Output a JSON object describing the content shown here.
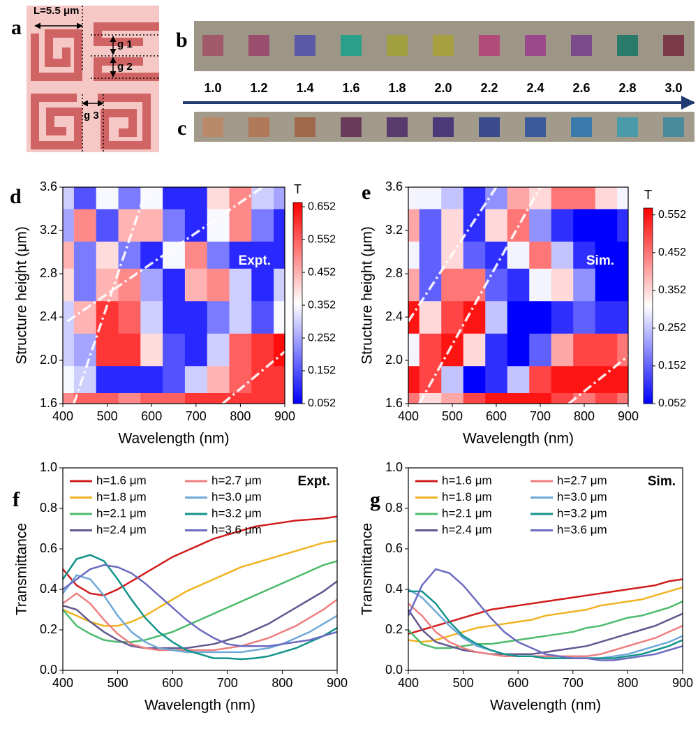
{
  "panel_a": {
    "label": "a",
    "length_label": "L=5.5 μm",
    "gap_labels": [
      "g 1",
      "g 2",
      "g 3"
    ]
  },
  "panel_b": {
    "label": "b",
    "square_colors": [
      "#a05a6a",
      "#9a4e6e",
      "#5a5aa8",
      "#2aa08a",
      "#a0a040",
      "#a8a040",
      "#b04a78",
      "#9a4a8a",
      "#7a4a8a",
      "#2a7a6a",
      "#7a3a4a"
    ]
  },
  "panel_c": {
    "label": "c",
    "square_colors": [
      "#b88a6a",
      "#b07a5a",
      "#a0684a",
      "#6a3a5a",
      "#5a3a6a",
      "#4a3a7a",
      "#3a4a8a",
      "#3a5a9a",
      "#3a7aaa",
      "#4a9aaa",
      "#4a8a9a"
    ]
  },
  "height_labels": [
    "1.0",
    "1.2",
    "1.4",
    "1.6",
    "1.8",
    "2.0",
    "2.2",
    "2.4",
    "2.6",
    "2.8",
    "3.0"
  ],
  "chart_data": [
    {
      "type": "heatmap",
      "panel": "d",
      "annotation": "Expt.",
      "xlabel": "Wavelength (nm)",
      "ylabel": "Structure height (μm)",
      "colorbar_label": "T",
      "x": [
        400,
        450,
        500,
        550,
        600,
        650,
        700,
        750,
        800,
        850,
        900
      ],
      "y_edges": [
        1.6,
        1.7,
        1.95,
        2.25,
        2.55,
        2.85,
        3.1,
        3.4,
        3.6
      ],
      "values": [
        [
          0.5,
          0.55,
          0.55,
          0.5,
          0.55,
          0.55,
          0.6,
          0.6,
          0.6,
          0.6,
          0.6
        ],
        [
          0.35,
          0.3,
          0.1,
          0.1,
          0.1,
          0.15,
          0.3,
          0.45,
          0.55,
          0.6,
          0.6
        ],
        [
          0.3,
          0.25,
          0.6,
          0.6,
          0.4,
          0.15,
          0.1,
          0.3,
          0.55,
          0.6,
          0.65
        ],
        [
          0.3,
          0.45,
          0.6,
          0.55,
          0.3,
          0.1,
          0.1,
          0.2,
          0.3,
          0.15,
          0.35
        ],
        [
          0.4,
          0.2,
          0.45,
          0.5,
          0.25,
          0.1,
          0.45,
          0.5,
          0.3,
          0.1,
          0.3
        ],
        [
          0.45,
          0.2,
          0.4,
          0.2,
          0.1,
          0.35,
          0.5,
          0.2,
          0.1,
          0.1,
          0.1
        ],
        [
          0.25,
          0.5,
          0.15,
          0.45,
          0.45,
          0.2,
          0.1,
          0.35,
          0.5,
          0.2,
          0.1
        ],
        [
          0.3,
          0.15,
          0.35,
          0.2,
          0.35,
          0.1,
          0.1,
          0.4,
          0.5,
          0.3,
          0.25
        ]
      ],
      "xlim": [
        400,
        900
      ],
      "ylim": [
        1.6,
        3.6
      ],
      "xticks": [
        400,
        500,
        600,
        700,
        800,
        900
      ],
      "yticks": [
        1.6,
        {
          "value": 2,
          "label": "2.0"
        },
        2.4,
        2.8,
        3.2,
        3.6
      ],
      "clim": [
        0.052,
        0.665
      ],
      "cticks": [
        0.052,
        0.152,
        0.252,
        0.352,
        0.452,
        0.552,
        0.652
      ],
      "colormap": [
        "#0000ff",
        "#ffffff",
        "#ff0000"
      ]
    },
    {
      "type": "heatmap",
      "panel": "e",
      "annotation": "Sim.",
      "xlabel": "Wavelength (nm)",
      "ylabel": "Structure height (μm)",
      "colorbar_label": "T",
      "x": [
        400,
        450,
        500,
        550,
        600,
        650,
        700,
        750,
        800,
        850,
        900
      ],
      "y_edges": [
        1.6,
        1.7,
        1.95,
        2.25,
        2.55,
        2.85,
        3.1,
        3.4,
        3.6
      ],
      "values": [
        [
          0.45,
          0.35,
          0.4,
          0.5,
          0.55,
          0.55,
          0.55,
          0.5,
          0.45,
          0.5,
          0.45
        ],
        [
          0.55,
          0.5,
          0.25,
          0.05,
          0.1,
          0.25,
          0.5,
          0.55,
          0.55,
          0.55,
          0.55
        ],
        [
          0.3,
          0.5,
          0.55,
          0.35,
          0.1,
          0.05,
          0.15,
          0.4,
          0.5,
          0.5,
          0.45
        ],
        [
          0.55,
          0.35,
          0.5,
          0.55,
          0.25,
          0.05,
          0.05,
          0.1,
          0.15,
          0.1,
          0.1
        ],
        [
          0.4,
          0.15,
          0.45,
          0.45,
          0.15,
          0.1,
          0.3,
          0.35,
          0.2,
          0.05,
          0.05
        ],
        [
          0.3,
          0.15,
          0.35,
          0.15,
          0.1,
          0.3,
          0.45,
          0.25,
          0.1,
          0.05,
          0.05
        ],
        [
          0.4,
          0.15,
          0.35,
          0.1,
          0.35,
          0.45,
          0.2,
          0.1,
          0.05,
          0.05,
          0.1
        ],
        [
          0.3,
          0.3,
          0.25,
          0.1,
          0.2,
          0.4,
          0.35,
          0.45,
          0.45,
          0.35,
          0.3
        ]
      ],
      "xlim": [
        400,
        900
      ],
      "ylim": [
        1.6,
        3.6
      ],
      "xticks": [
        400,
        500,
        600,
        700,
        800,
        900
      ],
      "yticks": [
        1.6,
        {
          "value": 2,
          "label": "2.0"
        },
        2.4,
        2.8,
        3.2,
        3.6
      ],
      "clim": [
        0.052,
        0.57
      ],
      "cticks": [
        0.052,
        0.152,
        0.252,
        0.352,
        0.452,
        0.552
      ],
      "colormap": [
        "#0000ff",
        "#ffffff",
        "#ff0000"
      ]
    },
    {
      "type": "line",
      "panel": "f",
      "annotation": "Expt.",
      "xlabel": "Wavelength (nm)",
      "ylabel": "Transmittance",
      "x": [
        400,
        425,
        450,
        475,
        500,
        525,
        550,
        575,
        600,
        625,
        650,
        675,
        700,
        725,
        750,
        775,
        800,
        825,
        850,
        875,
        900
      ],
      "xlim": [
        400,
        900
      ],
      "ylim": [
        0,
        1
      ],
      "xticks": [
        400,
        500,
        600,
        700,
        800,
        900
      ],
      "yticks": [
        {
          "value": 0,
          "label": "0.0"
        },
        0.2,
        0.4,
        0.6,
        0.8,
        {
          "value": 1,
          "label": "1.0"
        }
      ],
      "series": [
        {
          "name": "h=1.6 μm",
          "color": "#d01c1c",
          "values": [
            0.5,
            0.42,
            0.38,
            0.37,
            0.4,
            0.44,
            0.48,
            0.52,
            0.56,
            0.59,
            0.62,
            0.65,
            0.67,
            0.69,
            0.71,
            0.72,
            0.73,
            0.74,
            0.745,
            0.75,
            0.76
          ]
        },
        {
          "name": "h=1.8 μm",
          "color": "#f0b323",
          "values": [
            0.3,
            0.27,
            0.24,
            0.22,
            0.22,
            0.24,
            0.27,
            0.31,
            0.35,
            0.39,
            0.42,
            0.45,
            0.48,
            0.51,
            0.53,
            0.55,
            0.57,
            0.59,
            0.61,
            0.63,
            0.64
          ]
        },
        {
          "name": "h=2.1 μm",
          "color": "#4cbb6c",
          "values": [
            0.3,
            0.22,
            0.18,
            0.15,
            0.14,
            0.14,
            0.15,
            0.17,
            0.19,
            0.22,
            0.25,
            0.28,
            0.31,
            0.34,
            0.37,
            0.4,
            0.43,
            0.46,
            0.49,
            0.52,
            0.54
          ]
        },
        {
          "name": "h=2.4 μm",
          "color": "#625890",
          "values": [
            0.32,
            0.3,
            0.24,
            0.19,
            0.15,
            0.12,
            0.11,
            0.11,
            0.11,
            0.11,
            0.12,
            0.13,
            0.15,
            0.17,
            0.2,
            0.23,
            0.27,
            0.31,
            0.35,
            0.39,
            0.44
          ]
        },
        {
          "name": "h=2.7 μm",
          "color": "#ee7f7f",
          "values": [
            0.33,
            0.38,
            0.33,
            0.25,
            0.18,
            0.13,
            0.11,
            0.1,
            0.1,
            0.1,
            0.1,
            0.1,
            0.11,
            0.12,
            0.14,
            0.16,
            0.19,
            0.22,
            0.26,
            0.3,
            0.35
          ]
        },
        {
          "name": "h=3.0 μm",
          "color": "#6fa8d8",
          "values": [
            0.38,
            0.47,
            0.45,
            0.37,
            0.27,
            0.19,
            0.14,
            0.11,
            0.1,
            0.09,
            0.09,
            0.09,
            0.09,
            0.09,
            0.1,
            0.11,
            0.13,
            0.16,
            0.19,
            0.23,
            0.27
          ]
        },
        {
          "name": "h=3.2 μm",
          "color": "#12938a",
          "values": [
            0.45,
            0.55,
            0.57,
            0.54,
            0.45,
            0.35,
            0.26,
            0.19,
            0.14,
            0.1,
            0.08,
            0.06,
            0.06,
            0.055,
            0.06,
            0.07,
            0.09,
            0.11,
            0.14,
            0.17,
            0.21
          ]
        },
        {
          "name": "h=3.6 μm",
          "color": "#6b6bc0",
          "values": [
            0.4,
            0.45,
            0.5,
            0.52,
            0.51,
            0.48,
            0.43,
            0.37,
            0.31,
            0.25,
            0.2,
            0.16,
            0.13,
            0.12,
            0.12,
            0.12,
            0.13,
            0.14,
            0.15,
            0.17,
            0.19
          ]
        }
      ]
    },
    {
      "type": "line",
      "panel": "g",
      "annotation": "Sim.",
      "xlabel": "Wavelength (nm)",
      "ylabel": "Transmittance",
      "x": [
        400,
        425,
        450,
        475,
        500,
        525,
        550,
        575,
        600,
        625,
        650,
        675,
        700,
        725,
        750,
        775,
        800,
        825,
        850,
        875,
        900
      ],
      "xlim": [
        400,
        900
      ],
      "ylim": [
        0,
        1
      ],
      "xticks": [
        400,
        500,
        600,
        700,
        800,
        900
      ],
      "yticks": [
        {
          "value": 0,
          "label": "0.0"
        },
        0.2,
        0.4,
        0.6,
        0.8,
        {
          "value": 1,
          "label": "1.0"
        }
      ],
      "series": [
        {
          "name": "h=1.6 μm",
          "color": "#d01c1c",
          "values": [
            0.18,
            0.2,
            0.22,
            0.24,
            0.26,
            0.28,
            0.3,
            0.31,
            0.32,
            0.33,
            0.34,
            0.35,
            0.36,
            0.37,
            0.38,
            0.39,
            0.4,
            0.41,
            0.42,
            0.44,
            0.45
          ]
        },
        {
          "name": "h=1.8 μm",
          "color": "#f0b323",
          "values": [
            0.15,
            0.14,
            0.15,
            0.17,
            0.19,
            0.21,
            0.22,
            0.23,
            0.24,
            0.25,
            0.27,
            0.28,
            0.29,
            0.3,
            0.32,
            0.33,
            0.34,
            0.35,
            0.37,
            0.39,
            0.41
          ]
        },
        {
          "name": "h=2.1 μm",
          "color": "#4cbb6c",
          "values": [
            0.2,
            0.13,
            0.11,
            0.11,
            0.12,
            0.13,
            0.13,
            0.14,
            0.15,
            0.16,
            0.17,
            0.18,
            0.19,
            0.21,
            0.22,
            0.24,
            0.26,
            0.27,
            0.29,
            0.31,
            0.34
          ]
        },
        {
          "name": "h=2.4 μm",
          "color": "#625890",
          "values": [
            0.3,
            0.2,
            0.14,
            0.12,
            0.1,
            0.09,
            0.08,
            0.08,
            0.08,
            0.08,
            0.09,
            0.1,
            0.11,
            0.12,
            0.14,
            0.16,
            0.18,
            0.2,
            0.22,
            0.25,
            0.28
          ]
        },
        {
          "name": "h=2.7 μm",
          "color": "#ee7f7f",
          "values": [
            0.33,
            0.27,
            0.19,
            0.14,
            0.11,
            0.09,
            0.08,
            0.07,
            0.07,
            0.07,
            0.07,
            0.07,
            0.07,
            0.07,
            0.08,
            0.1,
            0.12,
            0.14,
            0.16,
            0.19,
            0.22
          ]
        },
        {
          "name": "h=3.0 μm",
          "color": "#6fa8d8",
          "values": [
            0.4,
            0.36,
            0.29,
            0.22,
            0.16,
            0.12,
            0.1,
            0.08,
            0.07,
            0.07,
            0.06,
            0.06,
            0.06,
            0.06,
            0.06,
            0.07,
            0.08,
            0.1,
            0.12,
            0.14,
            0.17
          ]
        },
        {
          "name": "h=3.2 μm",
          "color": "#12938a",
          "values": [
            0.39,
            0.39,
            0.33,
            0.24,
            0.17,
            0.13,
            0.1,
            0.08,
            0.07,
            0.07,
            0.06,
            0.06,
            0.06,
            0.06,
            0.06,
            0.06,
            0.07,
            0.08,
            0.1,
            0.12,
            0.15
          ]
        },
        {
          "name": "h=3.6 μm",
          "color": "#6b6bc0",
          "values": [
            0.27,
            0.42,
            0.5,
            0.48,
            0.42,
            0.34,
            0.26,
            0.19,
            0.14,
            0.11,
            0.08,
            0.07,
            0.06,
            0.06,
            0.05,
            0.05,
            0.06,
            0.07,
            0.08,
            0.1,
            0.12
          ]
        }
      ]
    }
  ]
}
